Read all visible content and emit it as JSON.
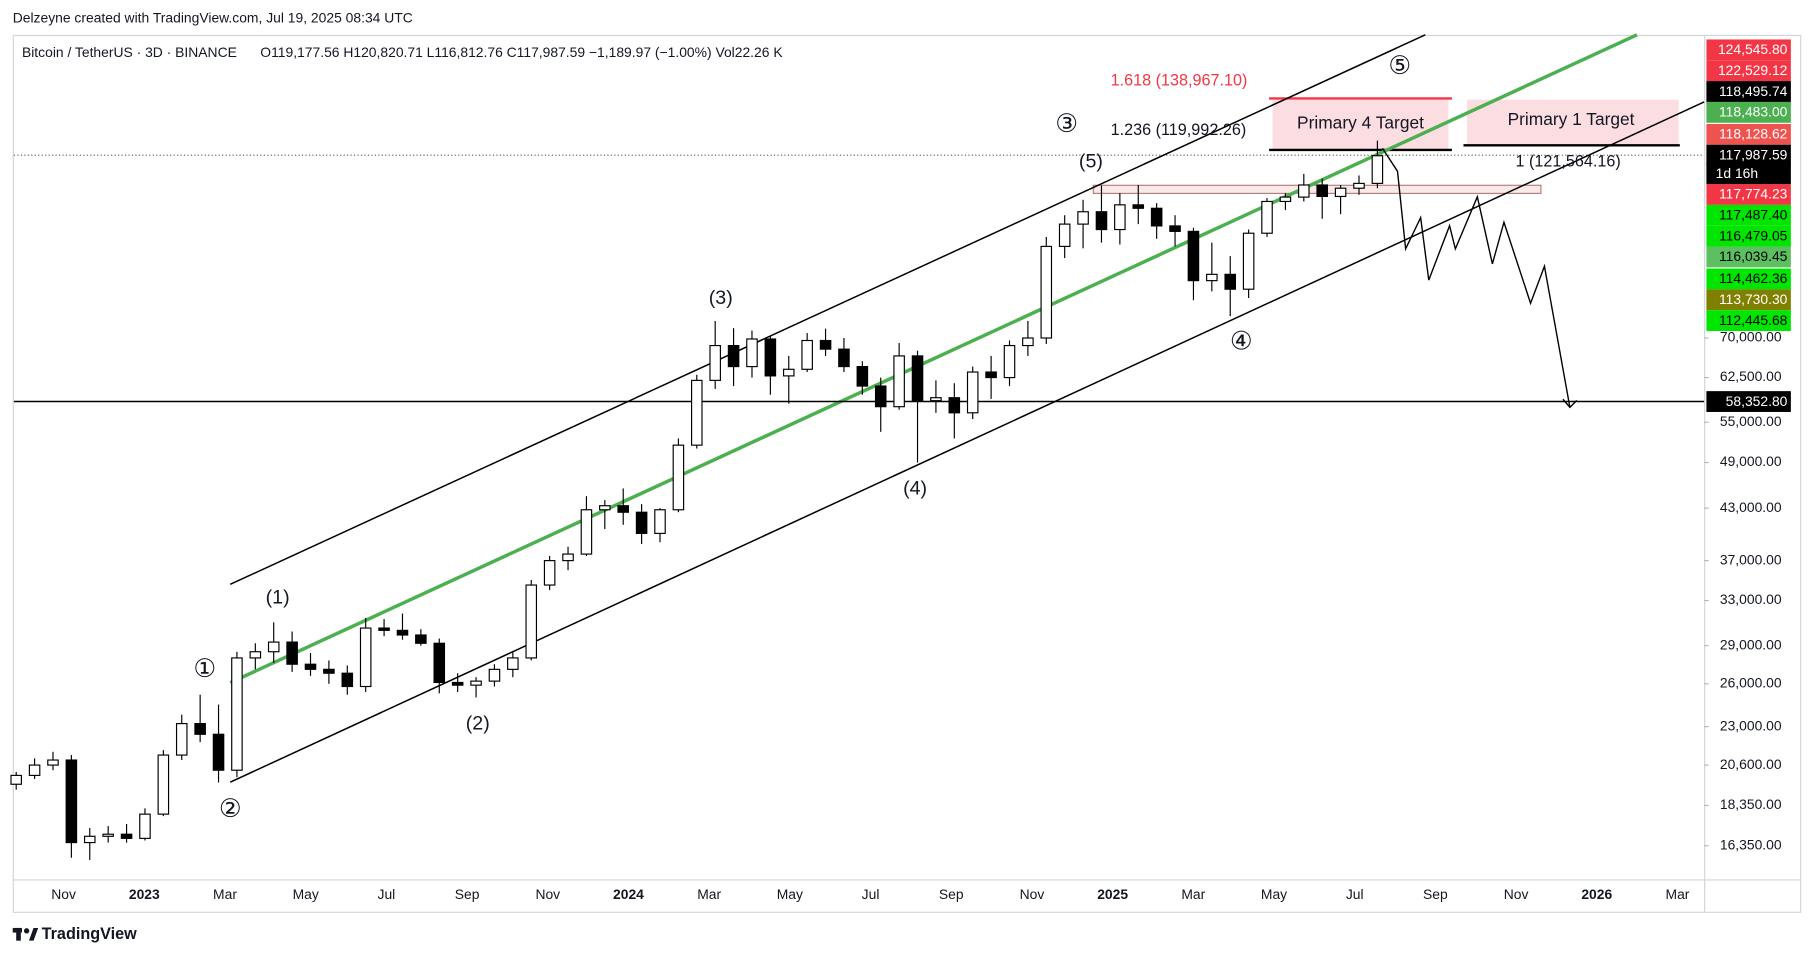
{
  "header": {
    "caption": "Delzeyne created with TradingView.com, Jul 19, 2025 08:34 UTC",
    "symbol": "Bitcoin / TetherUS · 3D · BINANCE",
    "ohlc": "O119,177.56  H120,820.71  L116,812.76  C117,987.59  −1,189.97 (−1.00%)  Vol22.26 K"
  },
  "chart_data": {
    "type": "candlestick",
    "categories": [
      "Nov",
      "2023",
      "Mar",
      "May",
      "Jul",
      "Sep",
      "Nov",
      "2024",
      "Mar",
      "May",
      "Jul",
      "Sep",
      "Nov",
      "2025",
      "Mar",
      "May",
      "Jul",
      "Sep",
      "Nov",
      "2026",
      "Mar"
    ],
    "open": [
      19500,
      20000,
      20600,
      20900,
      16500,
      16800,
      16900,
      16700,
      17900,
      21200,
      23200,
      22500,
      20300,
      28000,
      28500,
      29300,
      27500,
      27100,
      26800,
      25800,
      30500,
      30300,
      29900,
      29200,
      26100,
      25900,
      26200,
      27100,
      28000,
      34500,
      37000,
      37700,
      42800,
      43300,
      42500,
      40000,
      42800,
      51500,
      62000,
      68500,
      64500,
      69800,
      62800,
      64000,
      69500,
      67800,
      64500,
      61000,
      57500,
      66500,
      58500,
      59000,
      56500,
      63500,
      62500,
      68500,
      70000,
      91000,
      97000,
      100500,
      95500,
      102500,
      101500,
      96500,
      95000,
      82500,
      84000,
      80500,
      94500,
      103500,
      104800,
      108500,
      105000,
      107500,
      109000
    ],
    "high": [
      20200,
      21000,
      21400,
      21200,
      17200,
      17300,
      17400,
      18200,
      21500,
      23800,
      25200,
      24500,
      28500,
      29200,
      31000,
      30200,
      28400,
      27800,
      27400,
      31400,
      31300,
      31800,
      30400,
      29600,
      26800,
      26500,
      27500,
      28500,
      35000,
      37500,
      38500,
      44500,
      44000,
      45500,
      43500,
      43000,
      52500,
      63000,
      73500,
      72000,
      71500,
      70500,
      66500,
      71000,
      71900,
      70000,
      65500,
      62500,
      69000,
      67500,
      62000,
      61500,
      64500,
      66500,
      69500,
      73500,
      93500,
      99500,
      104000,
      108300,
      106000,
      108500,
      103000,
      99500,
      96000,
      92000,
      88500,
      95500,
      104500,
      106000,
      112000,
      110500,
      108500,
      111500,
      123200
    ],
    "low": [
      19200,
      19800,
      20300,
      15800,
      15700,
      16500,
      16500,
      16600,
      17800,
      20900,
      22000,
      19600,
      19900,
      27100,
      27600,
      26900,
      26600,
      26000,
      25200,
      25400,
      29800,
      29500,
      29000,
      25300,
      25400,
      25000,
      25800,
      26500,
      27800,
      34000,
      36000,
      37500,
      40500,
      41000,
      38800,
      39000,
      42500,
      51000,
      60500,
      61000,
      62500,
      59500,
      58000,
      63500,
      66500,
      63500,
      59500,
      53500,
      57000,
      49000,
      56500,
      52500,
      55500,
      58800,
      61000,
      66500,
      68800,
      88000,
      90500,
      92000,
      91500,
      97000,
      93000,
      91000,
      78000,
      80000,
      74500,
      78500,
      93500,
      101000,
      103500,
      98500,
      99800,
      105500,
      107500
    ],
    "close": [
      20000,
      20600,
      20900,
      16500,
      16800,
      16900,
      16700,
      17900,
      21200,
      23200,
      22500,
      20300,
      28000,
      28500,
      29300,
      27500,
      27100,
      26800,
      25800,
      30500,
      30300,
      29900,
      29200,
      26100,
      25900,
      26200,
      27100,
      28000,
      34500,
      37000,
      37700,
      42800,
      43300,
      42500,
      40000,
      42800,
      51500,
      62000,
      68500,
      64500,
      69800,
      62800,
      64000,
      69500,
      67800,
      64500,
      61000,
      57500,
      66500,
      58500,
      59000,
      56500,
      63500,
      62500,
      68500,
      70000,
      91000,
      97000,
      100500,
      95500,
      102500,
      101500,
      96500,
      95000,
      82500,
      84000,
      80500,
      94500,
      103500,
      104800,
      108500,
      105000,
      107500,
      109000,
      117987.59
    ],
    "up_color": "#ffffff",
    "down_color": "#000000",
    "log_scale": true,
    "ylim": [
      14850,
      166800
    ],
    "yticks": [
      {
        "value": 16350,
        "label": "16,350.00"
      },
      {
        "value": 18350,
        "label": "18,350.00"
      },
      {
        "value": 20600,
        "label": "20,600.00"
      },
      {
        "value": 23000,
        "label": "23,000.00"
      },
      {
        "value": 26000,
        "label": "26,000.00"
      },
      {
        "value": 29000,
        "label": "29,000.00"
      },
      {
        "value": 33000,
        "label": "33,000.00"
      },
      {
        "value": 37000,
        "label": "37,000.00"
      },
      {
        "value": 43000,
        "label": "43,000.00"
      },
      {
        "value": 49000,
        "label": "49,000.00"
      },
      {
        "value": 55000,
        "label": "55,000.00"
      },
      {
        "value": 62500,
        "label": "62,500.00"
      },
      {
        "value": 70000,
        "label": "70,000.00"
      }
    ],
    "price_tags": [
      {
        "value": 124545.8,
        "label": "124,545.80",
        "color": "#f23645"
      },
      {
        "value": 122529.12,
        "label": "122,529.12",
        "color": "#f23645"
      },
      {
        "value": 118495.74,
        "label": "118,495.74",
        "color": "#000000"
      },
      {
        "value": 118483,
        "label": "118,483.00",
        "color": "#4caf50"
      },
      {
        "value": 118128.62,
        "label": "118,128.62",
        "color": "#ef5350"
      },
      {
        "value": 117987.59,
        "label": "117,987.59",
        "color": "#000000"
      },
      {
        "value": 117774.23,
        "label": "117,774.23",
        "color": "#f23645"
      },
      {
        "value": 117487.4,
        "label": "117,487.40",
        "color": "#00e600"
      },
      {
        "value": 116479.05,
        "label": "116,479.05",
        "color": "#00e600"
      },
      {
        "value": 116039.45,
        "label": "116,039.45",
        "color": "#5cbf60"
      },
      {
        "value": 114462.36,
        "label": "114,462.36",
        "color": "#00e600"
      },
      {
        "value": 113730.3,
        "label": "113,730.30",
        "color": "#808000"
      },
      {
        "value": 112445.68,
        "label": "112,445.68",
        "color": "#00e600"
      }
    ],
    "countdown": "1d 16h",
    "level": {
      "value": 58352.8,
      "label": "58,352.80",
      "color": "#000000"
    },
    "annotations": [
      {
        "text": "1.618 (138,967.10)",
        "color": "#f23645"
      },
      {
        "text": "1.236 (119,992.26)",
        "color": "#131722"
      },
      {
        "text": "1 (121,564.16)",
        "color": "#131722"
      },
      {
        "text": "Primary 4 Target",
        "color": "#131722"
      },
      {
        "text": "Primary 1 Target",
        "color": "#131722"
      }
    ],
    "waves": [
      "①",
      "②",
      "③",
      "④",
      "⑤",
      "(1)",
      "(2)",
      "(3)",
      "(4)",
      "(5)"
    ]
  },
  "footer": {
    "brand": "TradingView"
  }
}
